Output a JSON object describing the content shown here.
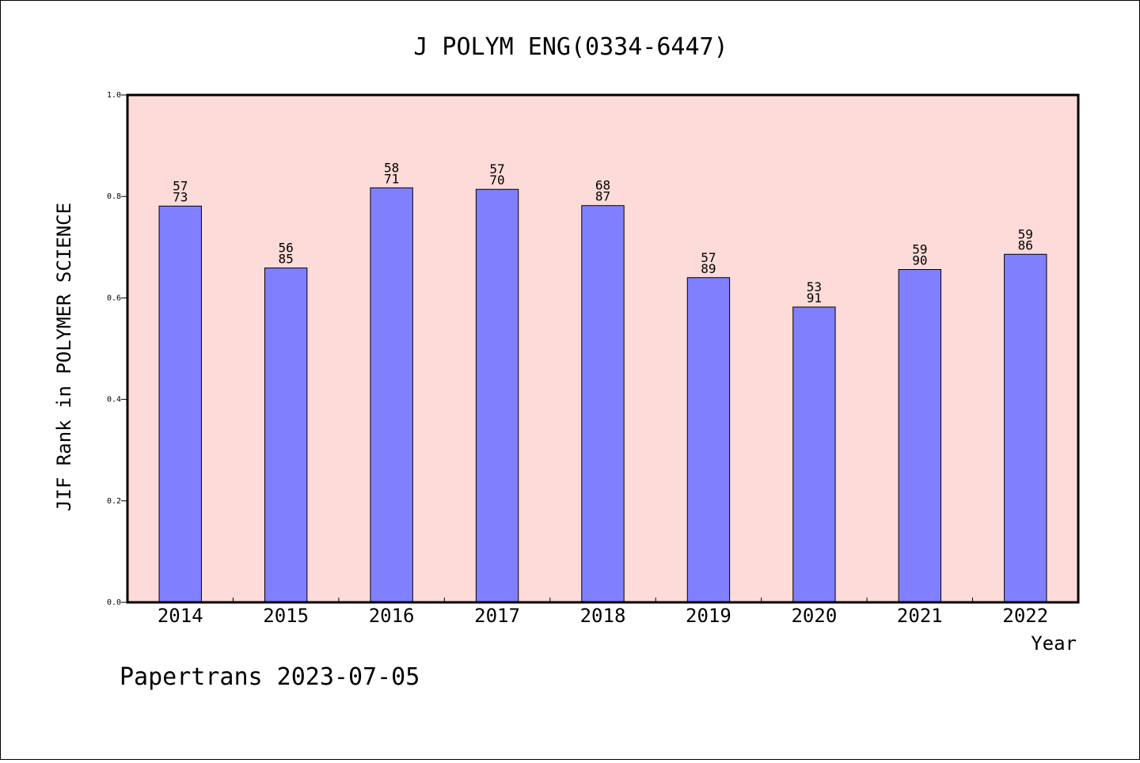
{
  "chart_data": {
    "type": "bar",
    "title": "J POLYM ENG(0334-6447)",
    "xlabel": "Year",
    "ylabel": "JIF Rank in POLYMER SCIENCE",
    "ylim": [
      0,
      1.0
    ],
    "yticks": [
      "0.0",
      "0.2",
      "0.4",
      "0.6",
      "0.8",
      "1.0"
    ],
    "categories": [
      "2014",
      "2015",
      "2016",
      "2017",
      "2018",
      "2019",
      "2020",
      "2021",
      "2022"
    ],
    "values": [
      0.781,
      0.659,
      0.817,
      0.814,
      0.782,
      0.64,
      0.582,
      0.656,
      0.686
    ],
    "labels": [
      {
        "rank": "57",
        "total": "73"
      },
      {
        "rank": "56",
        "total": "85"
      },
      {
        "rank": "58",
        "total": "71"
      },
      {
        "rank": "57",
        "total": "70"
      },
      {
        "rank": "68",
        "total": "87"
      },
      {
        "rank": "57",
        "total": "89"
      },
      {
        "rank": "53",
        "total": "91"
      },
      {
        "rank": "59",
        "total": "90"
      },
      {
        "rank": "59",
        "total": "86"
      }
    ],
    "grid": false,
    "colors": {
      "plot_background": "#fddbd8",
      "bar": "#8080ff"
    }
  },
  "footer": {
    "credit": "Papertrans 2023-07-05"
  }
}
